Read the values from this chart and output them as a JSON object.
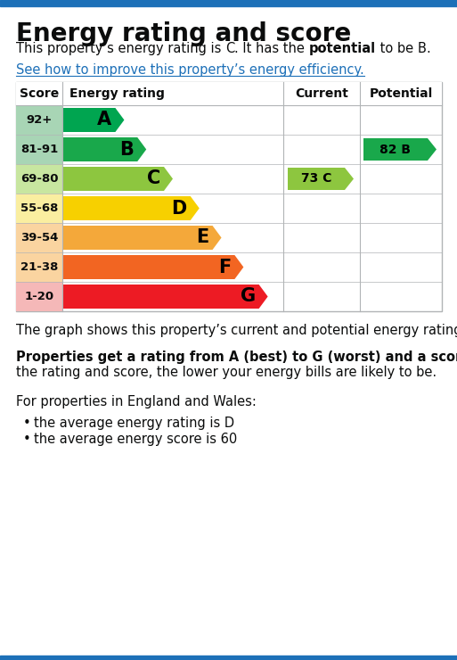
{
  "title": "Energy rating and score",
  "link_text": "See how to improve this property’s energy efficiency.",
  "ratings": [
    {
      "score": "92+",
      "letter": "A",
      "bar_color": "#00a550",
      "score_bg": "#a8d5b5",
      "bar_width": 0.28
    },
    {
      "score": "81-91",
      "letter": "B",
      "bar_color": "#19a84b",
      "score_bg": "#a8d5b5",
      "bar_width": 0.38
    },
    {
      "score": "69-80",
      "letter": "C",
      "bar_color": "#8dc63f",
      "score_bg": "#c8e6a0",
      "bar_width": 0.5
    },
    {
      "score": "55-68",
      "letter": "D",
      "bar_color": "#f7d000",
      "score_bg": "#faeea0",
      "bar_width": 0.62
    },
    {
      "score": "39-54",
      "letter": "E",
      "bar_color": "#f4a83a",
      "score_bg": "#fad4a0",
      "bar_width": 0.72
    },
    {
      "score": "21-38",
      "letter": "F",
      "bar_color": "#f26522",
      "score_bg": "#fad4a0",
      "bar_width": 0.82
    },
    {
      "score": "1-20",
      "letter": "G",
      "bar_color": "#ed1b24",
      "score_bg": "#f5b8b8",
      "bar_width": 0.93
    }
  ],
  "current": {
    "score": 73,
    "letter": "C",
    "color": "#8dc63f",
    "row": 2
  },
  "potential": {
    "score": 82,
    "letter": "B",
    "color": "#19a84b",
    "row": 1
  },
  "footer_text1": "The graph shows this property’s current and potential energy rating.",
  "footer_bold": "Properties get a rating from A (best) to G (worst) and a score.",
  "footer_text2": " The better the rating and score, the lower your energy bills are likely to be.",
  "footer_text3": "For properties in England and Wales:",
  "bullet1": "the average energy rating is D",
  "bullet2": "the average energy score is 60",
  "top_border_color": "#1d70b8",
  "bottom_border_color": "#1d70b8",
  "link_color": "#1d70b8",
  "bg_color": "#ffffff",
  "text_color": "#0b0c0c",
  "table_border_color": "#b1b4b6"
}
